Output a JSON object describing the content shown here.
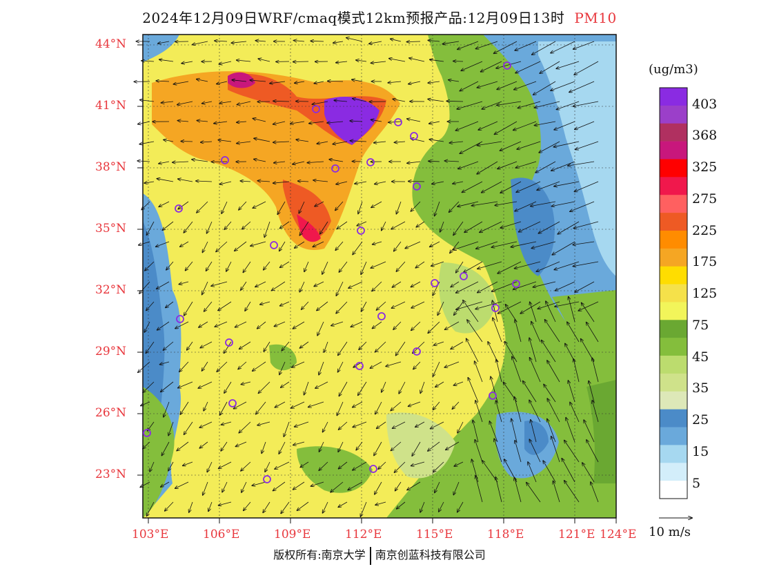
{
  "title": "2024年12月09日WRF/cmaq模式12km预报产品:12月09日13时",
  "pollutant": "PM10",
  "units": "(ug/m3)",
  "latitude_labels": [
    "44°N",
    "41°N",
    "38°N",
    "35°N",
    "32°N",
    "29°N",
    "26°N",
    "23°N"
  ],
  "longitude_labels": [
    "103°E",
    "106°E",
    "109°E",
    "112°E",
    "115°E",
    "118°E",
    "121°E",
    "124°E"
  ],
  "colorbar": {
    "labels": [
      "403",
      "368",
      "325",
      "275",
      "225",
      "175",
      "125",
      "75",
      "45",
      "35",
      "25",
      "15",
      "5"
    ],
    "colors": [
      "#8a2be2",
      "#9b3fc9",
      "#b03060",
      "#c8177c",
      "#ff0000",
      "#f0184c",
      "#ff6060",
      "#ee5a24",
      "#ff8c00",
      "#f5a623",
      "#ffdd00",
      "#f5e14a",
      "#f2f55a",
      "#6aa832",
      "#84be3c",
      "#bcdc6e",
      "#cfe28a",
      "#dde8b8",
      "#4b8bc8",
      "#6aa9db",
      "#a6d8f0",
      "#d3eefa",
      "#ffffff"
    ]
  },
  "wind_reference": "10 m/s",
  "copyright": {
    "left": "版权所有:南京大学",
    "right": "南京创蓝科技有限公司"
  },
  "station_marker_color": "#8a2be2",
  "axis_label_color": "#e8363c"
}
